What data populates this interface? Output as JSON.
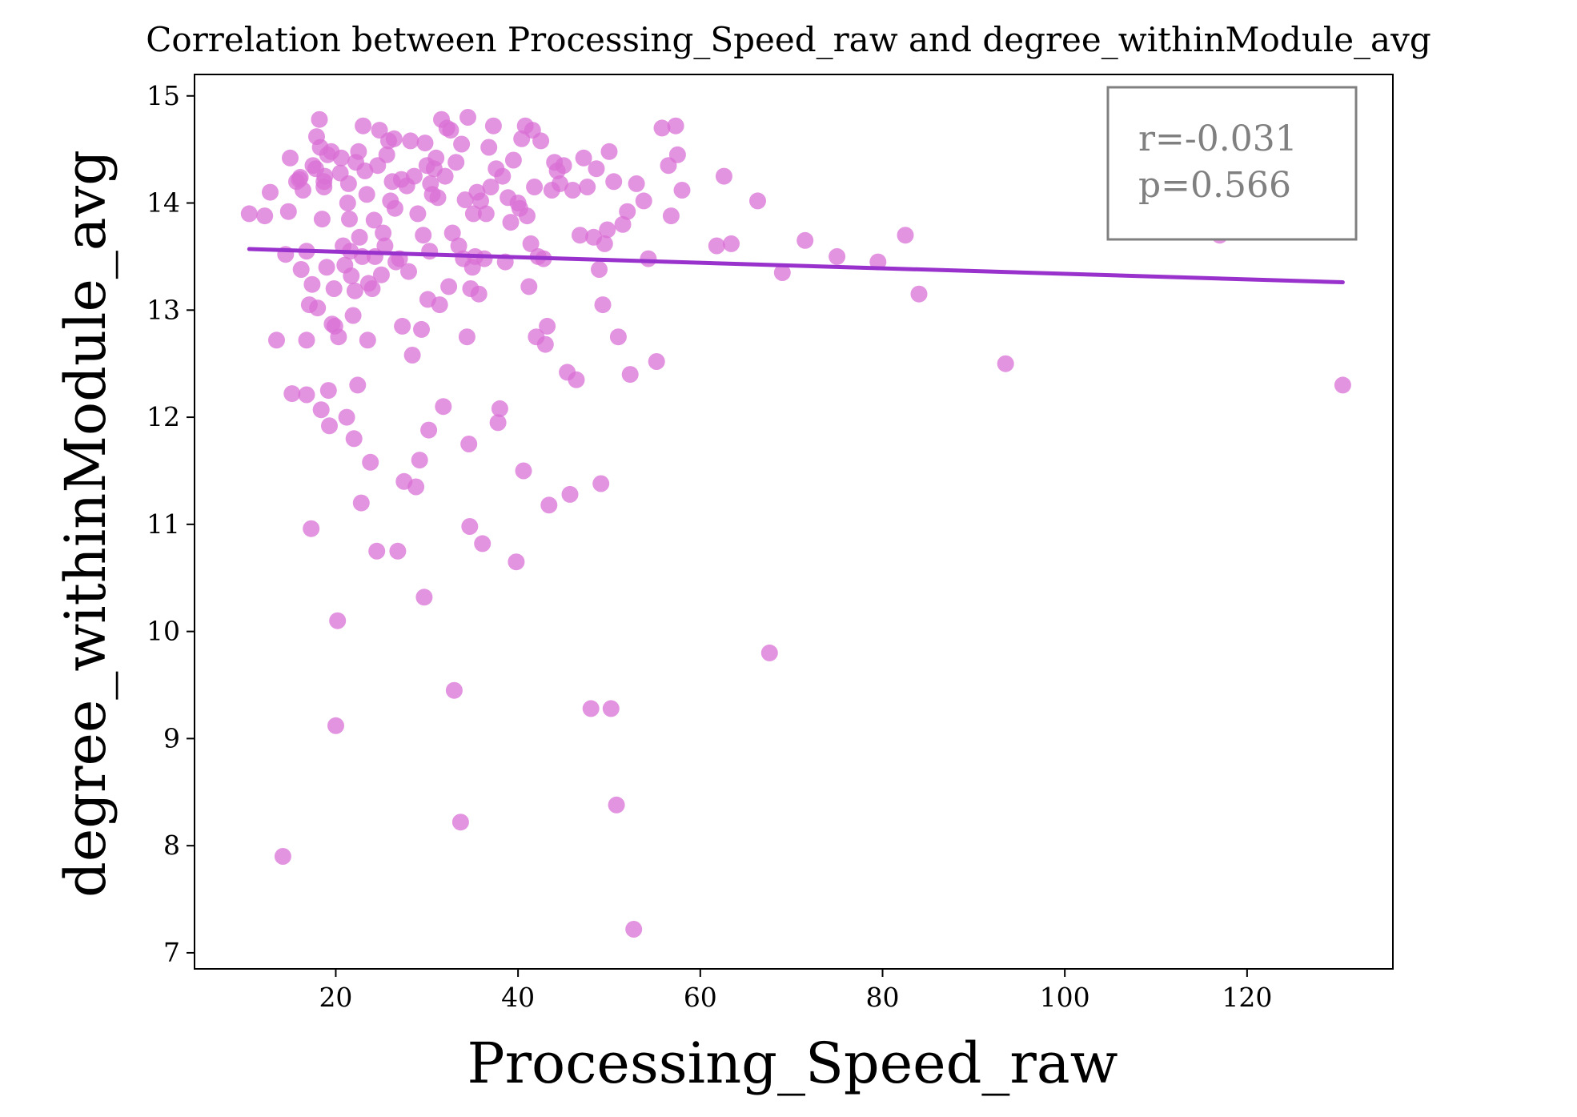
{
  "chart_data": {
    "type": "scatter",
    "title": "Correlation between Processing_Speed_raw and degree_withinModule_avg",
    "xlabel": "Processing_Speed_raw",
    "ylabel": "degree_withinModule_avg",
    "xlim": [
      4.5,
      136
    ],
    "ylim": [
      6.85,
      15.2
    ],
    "xticks": [
      20,
      40,
      60,
      80,
      100,
      120
    ],
    "yticks": [
      7,
      8,
      9,
      10,
      11,
      12,
      13,
      14,
      15
    ],
    "grid": false,
    "colors": {
      "points": "#da70d6",
      "regression": "#9932cc",
      "annotation": "#808080"
    },
    "annotation": {
      "r": "r=-0.031",
      "p": "p=0.566",
      "position": "top-right"
    },
    "regression_line": {
      "x": [
        10.5,
        130.5
      ],
      "y": [
        13.57,
        13.26
      ]
    },
    "points": [
      [
        10.5,
        13.9
      ],
      [
        12.2,
        13.88
      ],
      [
        12.8,
        14.1
      ],
      [
        13.5,
        12.72
      ],
      [
        14.2,
        7.9
      ],
      [
        14.5,
        13.52
      ],
      [
        14.8,
        13.92
      ],
      [
        15,
        14.42
      ],
      [
        15.2,
        12.22
      ],
      [
        15.7,
        14.2
      ],
      [
        16,
        14.22
      ],
      [
        16.1,
        14.24
      ],
      [
        16.2,
        13.38
      ],
      [
        16.4,
        14.12
      ],
      [
        16.8,
        13.55
      ],
      [
        16.8,
        12.72
      ],
      [
        16.8,
        12.21
      ],
      [
        17.1,
        13.05
      ],
      [
        17.3,
        10.96
      ],
      [
        17.4,
        13.24
      ],
      [
        17.5,
        14.35
      ],
      [
        17.8,
        14.32
      ],
      [
        17.9,
        14.62
      ],
      [
        18,
        13.02
      ],
      [
        18.2,
        14.78
      ],
      [
        18.3,
        14.52
      ],
      [
        18.4,
        12.07
      ],
      [
        18.5,
        13.85
      ],
      [
        18.7,
        14.2
      ],
      [
        18.7,
        14.15
      ],
      [
        18.8,
        14.25
      ],
      [
        19,
        13.4
      ],
      [
        19.1,
        14.45
      ],
      [
        19.2,
        12.25
      ],
      [
        19.3,
        11.92
      ],
      [
        19.5,
        14.48
      ],
      [
        19.6,
        12.87
      ],
      [
        19.8,
        13.2
      ],
      [
        19.9,
        12.85
      ],
      [
        20,
        9.12
      ],
      [
        20.2,
        10.1
      ],
      [
        20.3,
        12.75
      ],
      [
        20.5,
        14.28
      ],
      [
        20.6,
        14.42
      ],
      [
        20.8,
        13.6
      ],
      [
        21,
        13.42
      ],
      [
        21.2,
        12
      ],
      [
        21.3,
        14
      ],
      [
        21.4,
        14.18
      ],
      [
        21.5,
        13.85
      ],
      [
        21.6,
        13.55
      ],
      [
        21.7,
        13.32
      ],
      [
        21.9,
        12.95
      ],
      [
        22,
        11.8
      ],
      [
        22.1,
        13.18
      ],
      [
        22.2,
        14.38
      ],
      [
        22.4,
        12.3
      ],
      [
        22.5,
        14.48
      ],
      [
        22.6,
        13.68
      ],
      [
        22.8,
        11.2
      ],
      [
        22.9,
        13.5
      ],
      [
        23,
        14.72
      ],
      [
        23.2,
        14.3
      ],
      [
        23.4,
        14.08
      ],
      [
        23.5,
        12.72
      ],
      [
        23.6,
        13.25
      ],
      [
        23.8,
        11.58
      ],
      [
        24,
        13.2
      ],
      [
        24.2,
        13.84
      ],
      [
        24.3,
        13.5
      ],
      [
        24.5,
        10.75
      ],
      [
        24.6,
        14.35
      ],
      [
        24.8,
        14.68
      ],
      [
        25,
        13.33
      ],
      [
        25.2,
        13.72
      ],
      [
        25.4,
        13.6
      ],
      [
        25.6,
        14.45
      ],
      [
        25.8,
        14.58
      ],
      [
        26,
        14.02
      ],
      [
        26.2,
        14.2
      ],
      [
        26.4,
        14.6
      ],
      [
        26.5,
        13.95
      ],
      [
        26.6,
        13.45
      ],
      [
        26.8,
        10.75
      ],
      [
        27,
        13.48
      ],
      [
        27.2,
        14.22
      ],
      [
        27.3,
        12.85
      ],
      [
        27.5,
        11.4
      ],
      [
        27.8,
        14.16
      ],
      [
        28,
        13.36
      ],
      [
        28.2,
        14.58
      ],
      [
        28.4,
        12.58
      ],
      [
        28.6,
        14.25
      ],
      [
        28.8,
        11.35
      ],
      [
        29,
        13.9
      ],
      [
        29.2,
        11.6
      ],
      [
        29.4,
        12.82
      ],
      [
        29.6,
        13.7
      ],
      [
        29.7,
        10.32
      ],
      [
        29.8,
        14.56
      ],
      [
        30,
        14.35
      ],
      [
        30.1,
        13.1
      ],
      [
        30.2,
        11.88
      ],
      [
        30.3,
        13.55
      ],
      [
        30.4,
        14.18
      ],
      [
        30.6,
        14.08
      ],
      [
        30.8,
        14.32
      ],
      [
        31,
        14.42
      ],
      [
        31.2,
        14.05
      ],
      [
        31.4,
        13.05
      ],
      [
        31.6,
        14.78
      ],
      [
        31.8,
        12.1
      ],
      [
        32,
        14.25
      ],
      [
        32.2,
        14.7
      ],
      [
        32.4,
        13.22
      ],
      [
        32.6,
        14.68
      ],
      [
        32.8,
        13.72
      ],
      [
        33,
        9.45
      ],
      [
        33.2,
        14.38
      ],
      [
        33.5,
        13.6
      ],
      [
        33.7,
        8.22
      ],
      [
        33.8,
        14.55
      ],
      [
        34,
        13.48
      ],
      [
        34.2,
        14.03
      ],
      [
        34.4,
        12.75
      ],
      [
        34.5,
        14.8
      ],
      [
        34.6,
        11.75
      ],
      [
        34.7,
        10.98
      ],
      [
        34.8,
        13.2
      ],
      [
        35,
        13.4
      ],
      [
        35.1,
        13.9
      ],
      [
        35.3,
        13.5
      ],
      [
        35.5,
        14.1
      ],
      [
        35.7,
        13.15
      ],
      [
        35.9,
        14.02
      ],
      [
        36.1,
        10.82
      ],
      [
        36.3,
        13.48
      ],
      [
        36.5,
        13.9
      ],
      [
        36.8,
        14.52
      ],
      [
        37,
        14.15
      ],
      [
        37.3,
        14.72
      ],
      [
        37.6,
        14.32
      ],
      [
        37.8,
        11.95
      ],
      [
        38,
        12.08
      ],
      [
        38.3,
        14.25
      ],
      [
        38.6,
        13.45
      ],
      [
        38.9,
        14.05
      ],
      [
        39.2,
        13.82
      ],
      [
        39.5,
        14.4
      ],
      [
        39.8,
        10.65
      ],
      [
        40,
        14
      ],
      [
        40.2,
        13.95
      ],
      [
        40.4,
        14.6
      ],
      [
        40.6,
        11.5
      ],
      [
        40.8,
        14.72
      ],
      [
        41,
        13.88
      ],
      [
        41.2,
        13.22
      ],
      [
        41.4,
        13.62
      ],
      [
        41.6,
        14.68
      ],
      [
        41.8,
        14.15
      ],
      [
        42,
        12.75
      ],
      [
        42.2,
        13.5
      ],
      [
        42.5,
        14.58
      ],
      [
        42.8,
        13.48
      ],
      [
        43,
        12.68
      ],
      [
        43.2,
        12.85
      ],
      [
        43.4,
        11.18
      ],
      [
        43.7,
        14.12
      ],
      [
        44,
        14.38
      ],
      [
        44.3,
        14.3
      ],
      [
        44.6,
        14.18
      ],
      [
        45,
        14.35
      ],
      [
        45.4,
        12.42
      ],
      [
        45.7,
        11.28
      ],
      [
        46,
        14.12
      ],
      [
        46.4,
        12.35
      ],
      [
        46.8,
        13.7
      ],
      [
        47.2,
        14.42
      ],
      [
        47.6,
        14.15
      ],
      [
        48,
        9.28
      ],
      [
        48.3,
        13.68
      ],
      [
        48.6,
        14.32
      ],
      [
        48.9,
        13.38
      ],
      [
        49.1,
        11.38
      ],
      [
        49.3,
        13.05
      ],
      [
        49.5,
        13.62
      ],
      [
        49.8,
        13.75
      ],
      [
        50,
        14.48
      ],
      [
        50.2,
        9.28
      ],
      [
        50.5,
        14.2
      ],
      [
        50.8,
        8.38
      ],
      [
        51,
        12.75
      ],
      [
        51.5,
        13.8
      ],
      [
        52,
        13.92
      ],
      [
        52.3,
        12.4
      ],
      [
        52.7,
        7.22
      ],
      [
        53,
        14.18
      ],
      [
        53.8,
        14.02
      ],
      [
        54.3,
        13.48
      ],
      [
        55.2,
        12.52
      ],
      [
        55.8,
        14.7
      ],
      [
        56.5,
        14.35
      ],
      [
        56.8,
        13.88
      ],
      [
        57.3,
        14.72
      ],
      [
        57.5,
        14.45
      ],
      [
        58,
        14.12
      ],
      [
        61.8,
        13.6
      ],
      [
        62.6,
        14.25
      ],
      [
        63.4,
        13.62
      ],
      [
        66.3,
        14.02
      ],
      [
        67.6,
        9.8
      ],
      [
        69,
        13.35
      ],
      [
        71.5,
        13.65
      ],
      [
        75,
        13.5
      ],
      [
        79.5,
        13.45
      ],
      [
        82.5,
        13.7
      ],
      [
        84,
        13.15
      ],
      [
        93.5,
        12.5
      ],
      [
        117,
        13.7
      ],
      [
        130.5,
        12.3
      ]
    ]
  }
}
